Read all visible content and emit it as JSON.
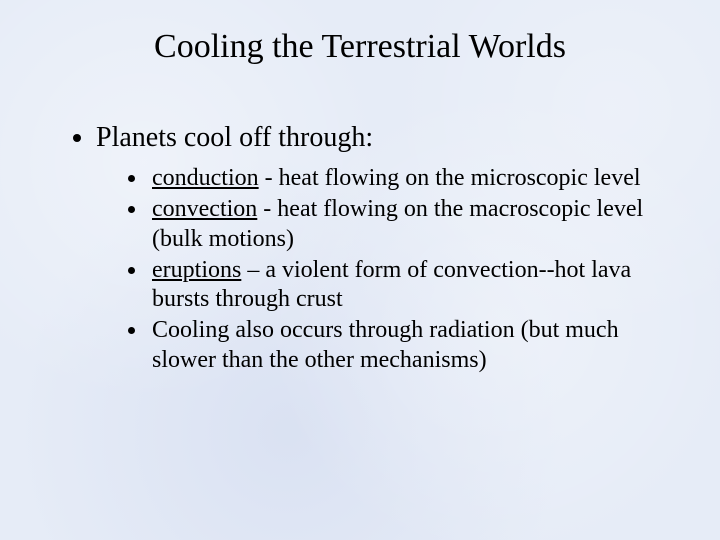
{
  "slide": {
    "background_color": "#e6ecf7",
    "text_color": "#000000",
    "font_family": "Times New Roman",
    "title": {
      "text": "Cooling the Terrestrial Worlds",
      "fontsize": 34,
      "align": "center"
    },
    "level1_fontsize": 28,
    "level2_fontsize": 24,
    "bullets": [
      {
        "text": "Planets cool off through:",
        "sub": [
          {
            "lead": " ",
            "underlined": "conduction",
            "rest": " - heat flowing on the microscopic level"
          },
          {
            "lead": " ",
            "underlined": "convection",
            "rest": " - heat flowing on the macroscopic level (bulk motions)"
          },
          {
            "lead": " ",
            "underlined": "eruptions",
            "rest": " – a violent form of convection--hot lava bursts through crust"
          },
          {
            "lead": "",
            "underlined": "",
            "rest": "Cooling also occurs through radiation (but much slower than the other mechanisms)"
          }
        ]
      }
    ]
  }
}
